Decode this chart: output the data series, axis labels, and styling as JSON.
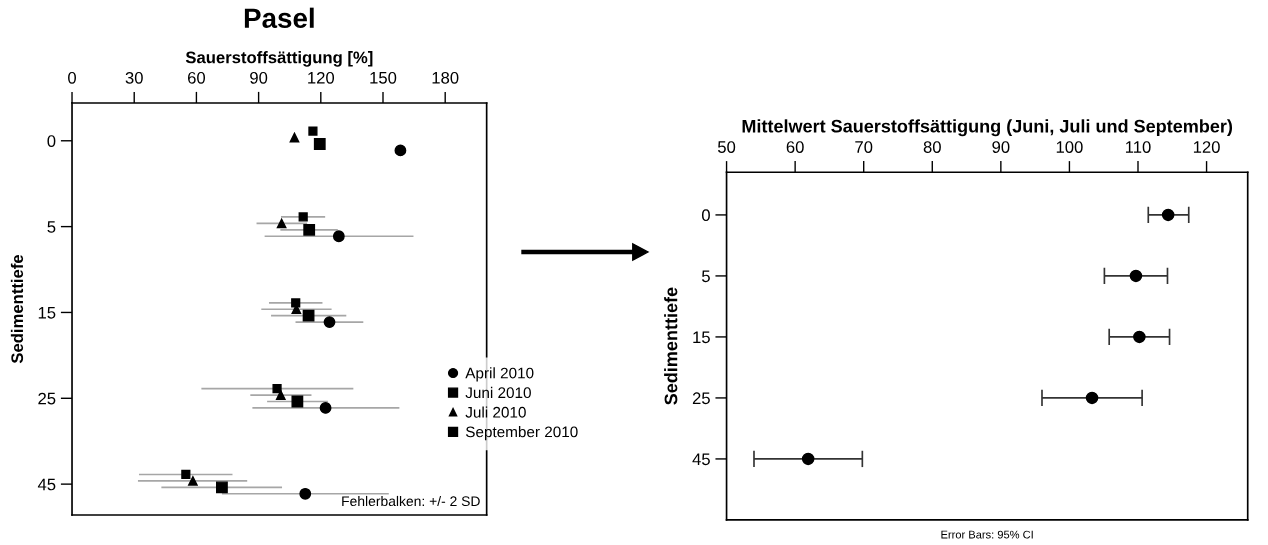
{
  "chart_data": [
    {
      "type": "scatter",
      "orientation": "horizontal",
      "title": "Pasel",
      "xlabel": "Sauerstoffsättigung [%]",
      "ylabel": "Sedimenttiefe",
      "categories": [
        "0",
        "5",
        "15",
        "25",
        "45"
      ],
      "xlim": [
        0,
        200
      ],
      "xticks": [
        0,
        30,
        60,
        90,
        120,
        150,
        180
      ],
      "grid": false,
      "legend": "right",
      "annotations": [
        "Fehlerbalken: +/- 2 SD"
      ],
      "series": [
        {
          "name": "September 2010",
          "color": "#000000",
          "marker": "square",
          "values": [
            116.2,
            111.5,
            107.9,
            98.9,
            54.9
          ],
          "errors": [
            null,
            [
              100.8,
              122.1
            ],
            [
              95.0,
              120.8
            ],
            [
              62.4,
              135.7
            ],
            [
              32.3,
              77.4
            ]
          ]
        },
        {
          "name": "Juli 2010",
          "color": "#000000",
          "marker": "triangle",
          "values": [
            107.3,
            101.1,
            108.2,
            100.7,
            58.3
          ],
          "errors": [
            null,
            [
              89.0,
              113.4
            ],
            [
              91.3,
              125.2
            ],
            [
              86.0,
              115.5
            ],
            [
              31.8,
              84.5
            ]
          ]
        },
        {
          "name": "Juni 2010",
          "color": "#000000",
          "marker": "square",
          "values": [
            119.5,
            114.4,
            114.1,
            108.7,
            72.3
          ],
          "errors": [
            null,
            [
              100.5,
              128.2
            ],
            [
              96.0,
              132.3
            ],
            [
              94.1,
              123.4
            ],
            [
              43.1,
              101.3
            ]
          ]
        },
        {
          "name": "April 2010",
          "color": "#000000",
          "marker": "circle",
          "values": [
            158.4,
            128.7,
            124.2,
            122.3,
            112.5
          ],
          "errors": [
            null,
            [
              92.9,
              164.7
            ],
            [
              107.8,
              140.5
            ],
            [
              87.0,
              157.9
            ],
            [
              72.3,
              152.8
            ]
          ]
        }
      ]
    },
    {
      "type": "scatter",
      "orientation": "horizontal",
      "xlabel": "Mittelwert Sauerstoffsättigung (Juni, Juli und September)",
      "ylabel": "Sedimenttiefe",
      "categories": [
        "0",
        "5",
        "15",
        "25",
        "45"
      ],
      "xlim": [
        50,
        126
      ],
      "xticks": [
        50,
        60,
        70,
        80,
        90,
        100,
        110,
        120
      ],
      "grid": false,
      "legend": false,
      "annotations": [
        "Error Bars: 95% CI"
      ],
      "series": [
        {
          "color": "#000000",
          "marker": "circle",
          "values": [
            114.4,
            109.7,
            110.2,
            103.3,
            61.9
          ],
          "errors": [
            [
              111.5,
              117.4
            ],
            [
              105.1,
              114.3
            ],
            [
              105.8,
              114.6
            ],
            [
              96.0,
              110.6
            ],
            [
              54.0,
              69.8
            ]
          ]
        }
      ]
    }
  ]
}
